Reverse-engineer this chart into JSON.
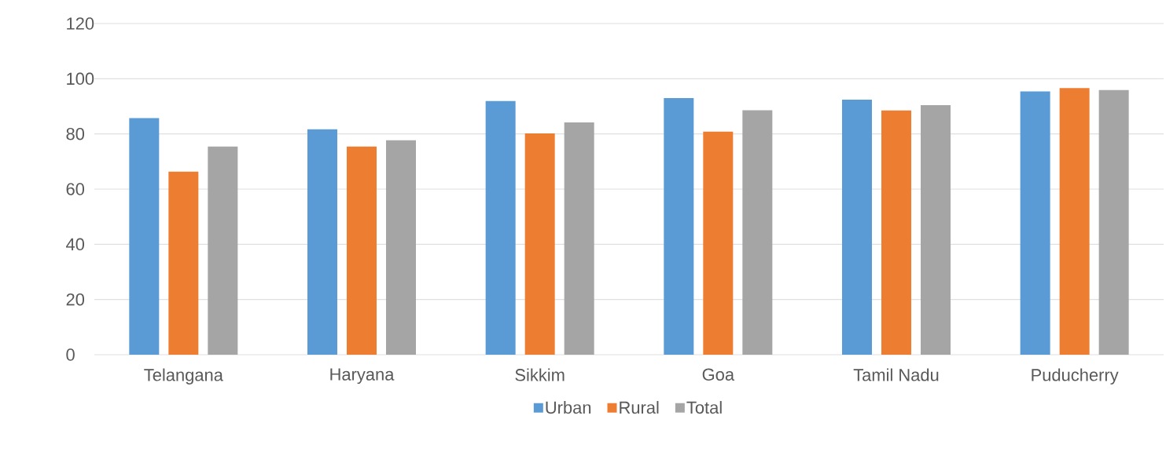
{
  "chart_data": {
    "type": "bar",
    "categories": [
      "Telangana",
      "Haryana",
      "Sikkim",
      "Goa",
      "Tamil Nadu",
      "Puducherry"
    ],
    "series": [
      {
        "name": "Urban",
        "color": "#5b9bd5",
        "values": [
          85.7,
          81.7,
          91.9,
          93.0,
          92.4,
          95.4
        ]
      },
      {
        "name": "Rural",
        "color": "#ed7d31",
        "values": [
          66.3,
          75.4,
          80.2,
          80.8,
          88.5,
          96.6
        ]
      },
      {
        "name": "Total",
        "color": "#a5a5a5",
        "values": [
          75.4,
          77.7,
          84.2,
          88.6,
          90.4,
          95.9
        ]
      }
    ],
    "ylim": [
      0,
      120
    ],
    "yticks": [
      0,
      20,
      40,
      60,
      80,
      100,
      120
    ],
    "grid": "y",
    "legend": "bottom"
  }
}
